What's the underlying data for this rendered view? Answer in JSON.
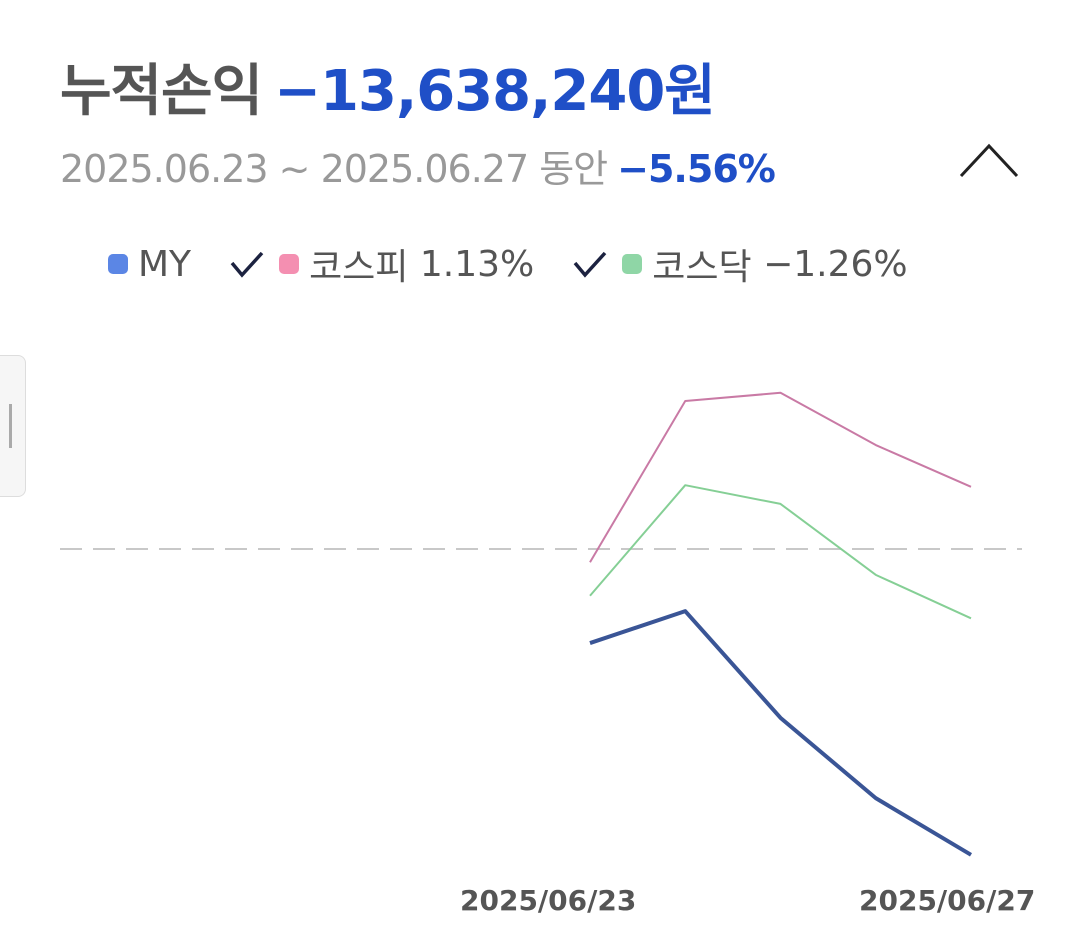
{
  "header": {
    "label": "누적손익",
    "amount": "−13,638,240원",
    "period": "2025.06.23 ~ 2025.06.27 동안",
    "return": "−5.56%",
    "collapse_icon": "chevron-up-icon"
  },
  "legend": [
    {
      "name": "MY",
      "value": "",
      "color": "#5b86e5",
      "checked": false
    },
    {
      "name": "코스피",
      "value": "1.13%",
      "color": "#f48fb1",
      "checked": true
    },
    {
      "name": "코스닥",
      "value": "−1.26%",
      "color": "#8fd6a6",
      "checked": true
    }
  ],
  "chart_data": {
    "type": "line",
    "x": [
      "2025/06/23",
      "2025/06/24",
      "2025/06/25",
      "2025/06/26",
      "2025/06/27"
    ],
    "x_tick_labels": [
      "2025/06/23",
      "2025/06/27"
    ],
    "baseline": 0,
    "grid": false,
    "series": [
      {
        "name": "MY",
        "color": "#3a5596",
        "values": [
          -1.71,
          -1.13,
          -3.07,
          -4.53,
          -5.56
        ]
      },
      {
        "name": "코스피",
        "color": "#c97aa5",
        "values": [
          -0.24,
          2.69,
          2.84,
          1.89,
          1.13
        ]
      },
      {
        "name": "코스닥",
        "color": "#85cf95",
        "values": [
          -0.85,
          1.16,
          0.82,
          -0.47,
          -1.26
        ]
      }
    ]
  }
}
